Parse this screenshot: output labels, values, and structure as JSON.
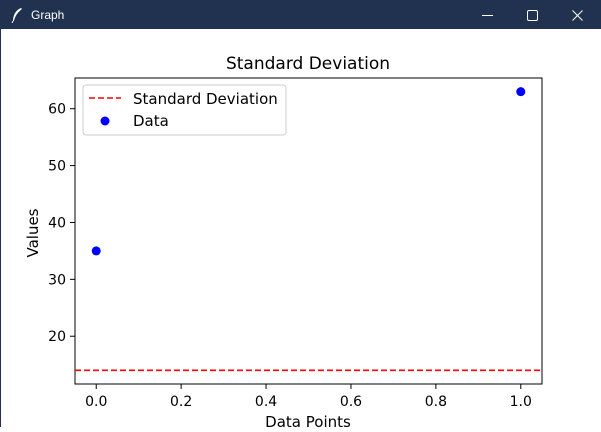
{
  "window": {
    "title": "Graph",
    "app_icon": "feather-icon",
    "controls": [
      "minimize-icon",
      "maximize-icon",
      "close-icon"
    ]
  },
  "colors": {
    "titlebar": "#20324f",
    "std_line": "#ff0000",
    "data_points": "#0000ff"
  },
  "chart_data": {
    "type": "scatter",
    "title": "Standard Deviation",
    "xlabel": "Data Points",
    "ylabel": "Values",
    "xlim": [
      -0.05,
      1.05
    ],
    "ylim": [
      11.6,
      65.4
    ],
    "x_ticks": [
      0.0,
      0.2,
      0.4,
      0.6,
      0.8,
      1.0
    ],
    "x_tick_labels": [
      "0.0",
      "0.2",
      "0.4",
      "0.6",
      "0.8",
      "1.0"
    ],
    "y_ticks": [
      20,
      30,
      40,
      50,
      60
    ],
    "y_tick_labels": [
      "20",
      "30",
      "40",
      "50",
      "60"
    ],
    "grid": false,
    "legend_position": "top-left",
    "series": [
      {
        "name": "Data",
        "kind": "scatter",
        "x": [
          0,
          1
        ],
        "y": [
          35,
          63
        ]
      },
      {
        "name": "Standard Deviation",
        "kind": "hline",
        "y": 14
      }
    ],
    "legend": [
      "Standard Deviation",
      "Data"
    ]
  }
}
